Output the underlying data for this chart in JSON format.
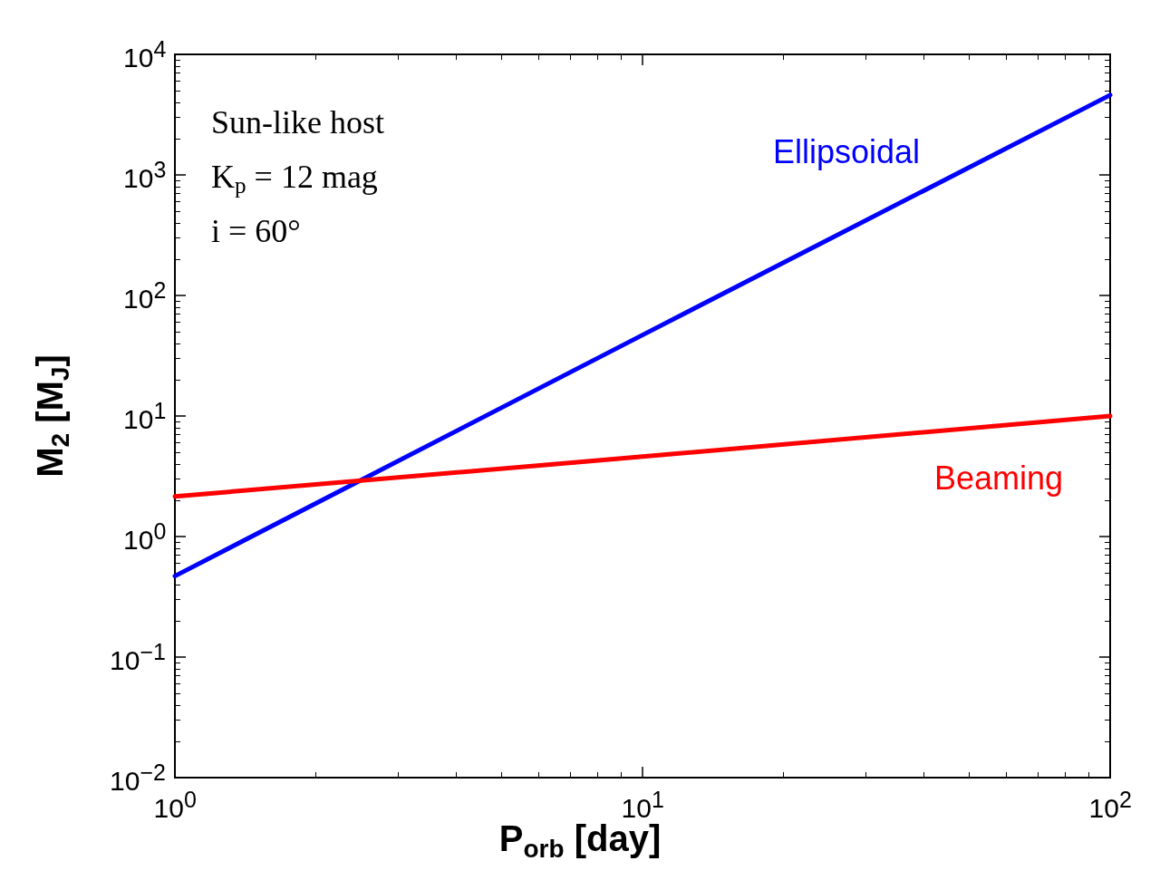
{
  "chart_data": {
    "type": "line",
    "xlabel": "P$_{orb}$ [day]",
    "ylabel": "M$_{2}$ [M$_{J}$]",
    "log": "xy",
    "grid": false,
    "legend": false,
    "marker": "none",
    "line_style": "solid",
    "xlim": [
      1,
      100
    ],
    "xticks": [
      {
        "value": 1,
        "label": "10$^{0}$"
      },
      {
        "value": 10,
        "label": "10$^{1}$"
      },
      {
        "value": 100,
        "label": "10$^{2}$"
      }
    ],
    "ylim": [
      0.01,
      10000
    ],
    "yticks": [
      {
        "value": 0.01,
        "label": "10$^{−2}$"
      },
      {
        "value": 0.1,
        "label": "10$^{−1}$"
      },
      {
        "value": 1,
        "label": "10$^{0}$"
      },
      {
        "value": 10,
        "label": "10$^{1}$"
      },
      {
        "value": 100,
        "label": "10$^{2}$"
      },
      {
        "value": 1000,
        "label": "10$^{3}$"
      },
      {
        "value": 10000,
        "label": "10$^{4}$"
      }
    ],
    "series": [
      {
        "name": "Ellipsoidal",
        "color": "#0000ff",
        "x": [
          1,
          10,
          100
        ],
        "values": [
          0.47,
          47,
          4600
        ]
      },
      {
        "name": "Beaming",
        "color": "#ff0000",
        "x": [
          1,
          10,
          100
        ],
        "values": [
          2.15,
          4.6,
          10
        ]
      }
    ],
    "annotations": [
      "Sun-like host",
      "K$_{p}$ = 12 mag",
      "i = 60°"
    ]
  }
}
